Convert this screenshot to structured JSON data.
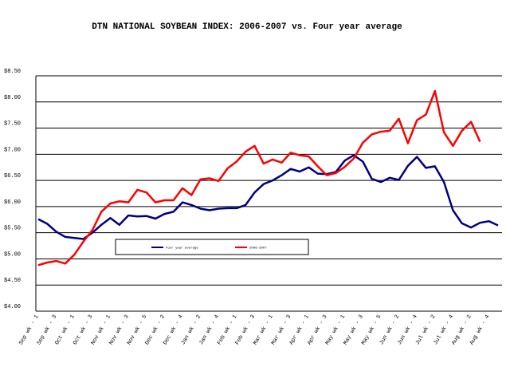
{
  "chart_data": {
    "type": "line",
    "title": "DTN NATIONAL SOYBEAN  INDEX: 2006-2007 vs. Four year average",
    "categories": [
      "Sep wk - 1",
      null,
      "Sep wk - 3",
      null,
      "Oct wk - 1",
      null,
      "Oct wk - 3",
      null,
      "Nov wk - 1",
      null,
      "Nov wk - 3",
      null,
      "Nov wk - 5",
      null,
      "Dec wk - 2",
      null,
      "Dec wk - 4",
      null,
      "Jan wk - 2",
      null,
      "Jan wk - 4",
      null,
      "Feb wk - 1",
      null,
      "Feb wk - 3",
      null,
      "Mar wk - 1",
      null,
      "Mar wk - 3",
      null,
      "Apr wk - 1",
      null,
      "Apr wk - 3",
      null,
      "May wk - 1",
      null,
      "May wk - 3",
      null,
      "May wk - 5",
      null,
      "Jun wk - 2",
      null,
      "Jun wk - 4",
      null,
      "Jul wk - 2",
      null,
      "Jul wk - 4",
      null,
      "Aug wk - 2",
      null,
      "Aug wk - 4",
      null
    ],
    "series": [
      {
        "name": "Four year average",
        "color": "#000080",
        "values": [
          5.76,
          5.67,
          5.52,
          5.42,
          5.4,
          5.38,
          5.5,
          5.65,
          5.78,
          5.65,
          5.83,
          5.81,
          5.82,
          5.77,
          5.86,
          5.9,
          6.08,
          6.03,
          5.96,
          5.93,
          5.96,
          5.97,
          5.97,
          6.03,
          6.27,
          6.43,
          6.5,
          6.6,
          6.72,
          6.67,
          6.75,
          6.63,
          6.62,
          6.66,
          6.88,
          6.98,
          6.86,
          6.53,
          6.47,
          6.55,
          6.51,
          6.78,
          6.95,
          6.74,
          6.77,
          6.47,
          5.93,
          5.68,
          5.6,
          5.69,
          5.72,
          5.64
        ]
      },
      {
        "name": "2006-2007",
        "color": "#ff0000",
        "values": [
          4.88,
          4.93,
          4.96,
          4.91,
          5.08,
          5.33,
          5.55,
          5.9,
          6.06,
          6.1,
          6.08,
          6.32,
          6.27,
          6.08,
          6.12,
          6.12,
          6.35,
          6.22,
          6.52,
          6.54,
          6.49,
          6.73,
          6.86,
          7.05,
          7.16,
          6.82,
          6.9,
          6.84,
          7.03,
          6.98,
          6.96,
          6.77,
          6.6,
          6.64,
          6.76,
          6.92,
          7.22,
          7.38,
          7.43,
          7.45,
          7.68,
          7.21,
          7.65,
          7.76,
          8.21,
          7.42,
          7.16,
          7.45,
          7.62,
          7.24,
          null,
          null
        ]
      }
    ],
    "ylim": [
      4,
      8.5
    ],
    "yticks": [
      {
        "value": 4,
        "label": "$4.00"
      },
      {
        "value": 4.5,
        "label": "$4.50"
      },
      {
        "value": 5,
        "label": "$5.00"
      },
      {
        "value": 5.5,
        "label": "$5.50"
      },
      {
        "value": 6,
        "label": "$6.00"
      },
      {
        "value": 6.5,
        "label": "$6.50"
      },
      {
        "value": 7,
        "label": "$7.00"
      },
      {
        "value": 7.5,
        "label": "$7.50"
      },
      {
        "value": 8,
        "label": "$8.00"
      },
      {
        "value": 8.5,
        "label": "$8.50"
      }
    ],
    "grid": true
  }
}
